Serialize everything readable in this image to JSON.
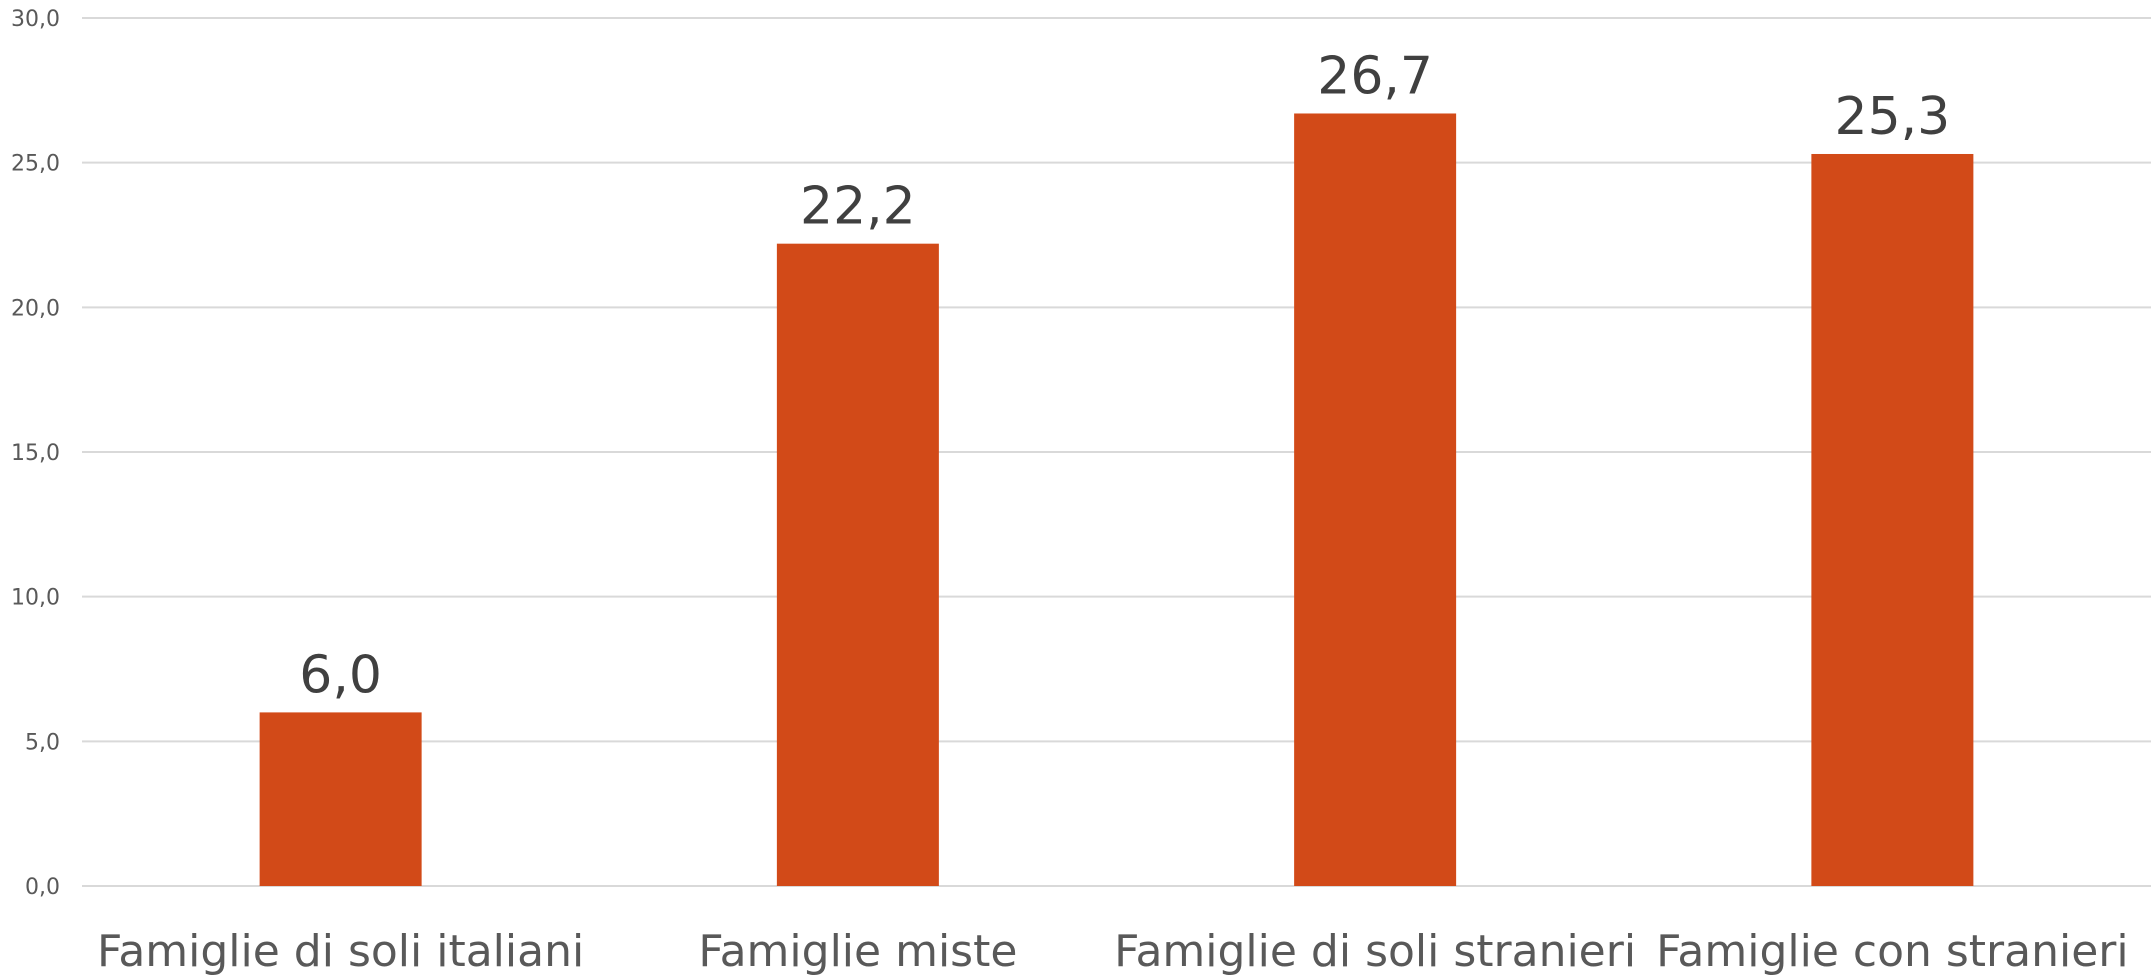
{
  "chart_data": {
    "type": "bar",
    "categories": [
      "Famiglie di soli italiani",
      "Famiglie miste",
      "Famiglie di soli stranieri",
      "Famiglie con stranieri"
    ],
    "values": [
      6.0,
      22.2,
      26.7,
      25.3
    ],
    "data_labels": [
      "6,0",
      "22,2",
      "26,7",
      "25,3"
    ],
    "yticks": [
      0,
      5,
      10,
      15,
      20,
      25,
      30
    ],
    "ytick_labels": [
      "0,0",
      "5,0",
      "10,0",
      "15,0",
      "20,0",
      "25,0",
      "30,0"
    ],
    "ylim": [
      0,
      30
    ],
    "title": "",
    "xlabel": "",
    "ylabel": "",
    "grid": true,
    "legend": "none",
    "bar_color": "#d24a18"
  }
}
